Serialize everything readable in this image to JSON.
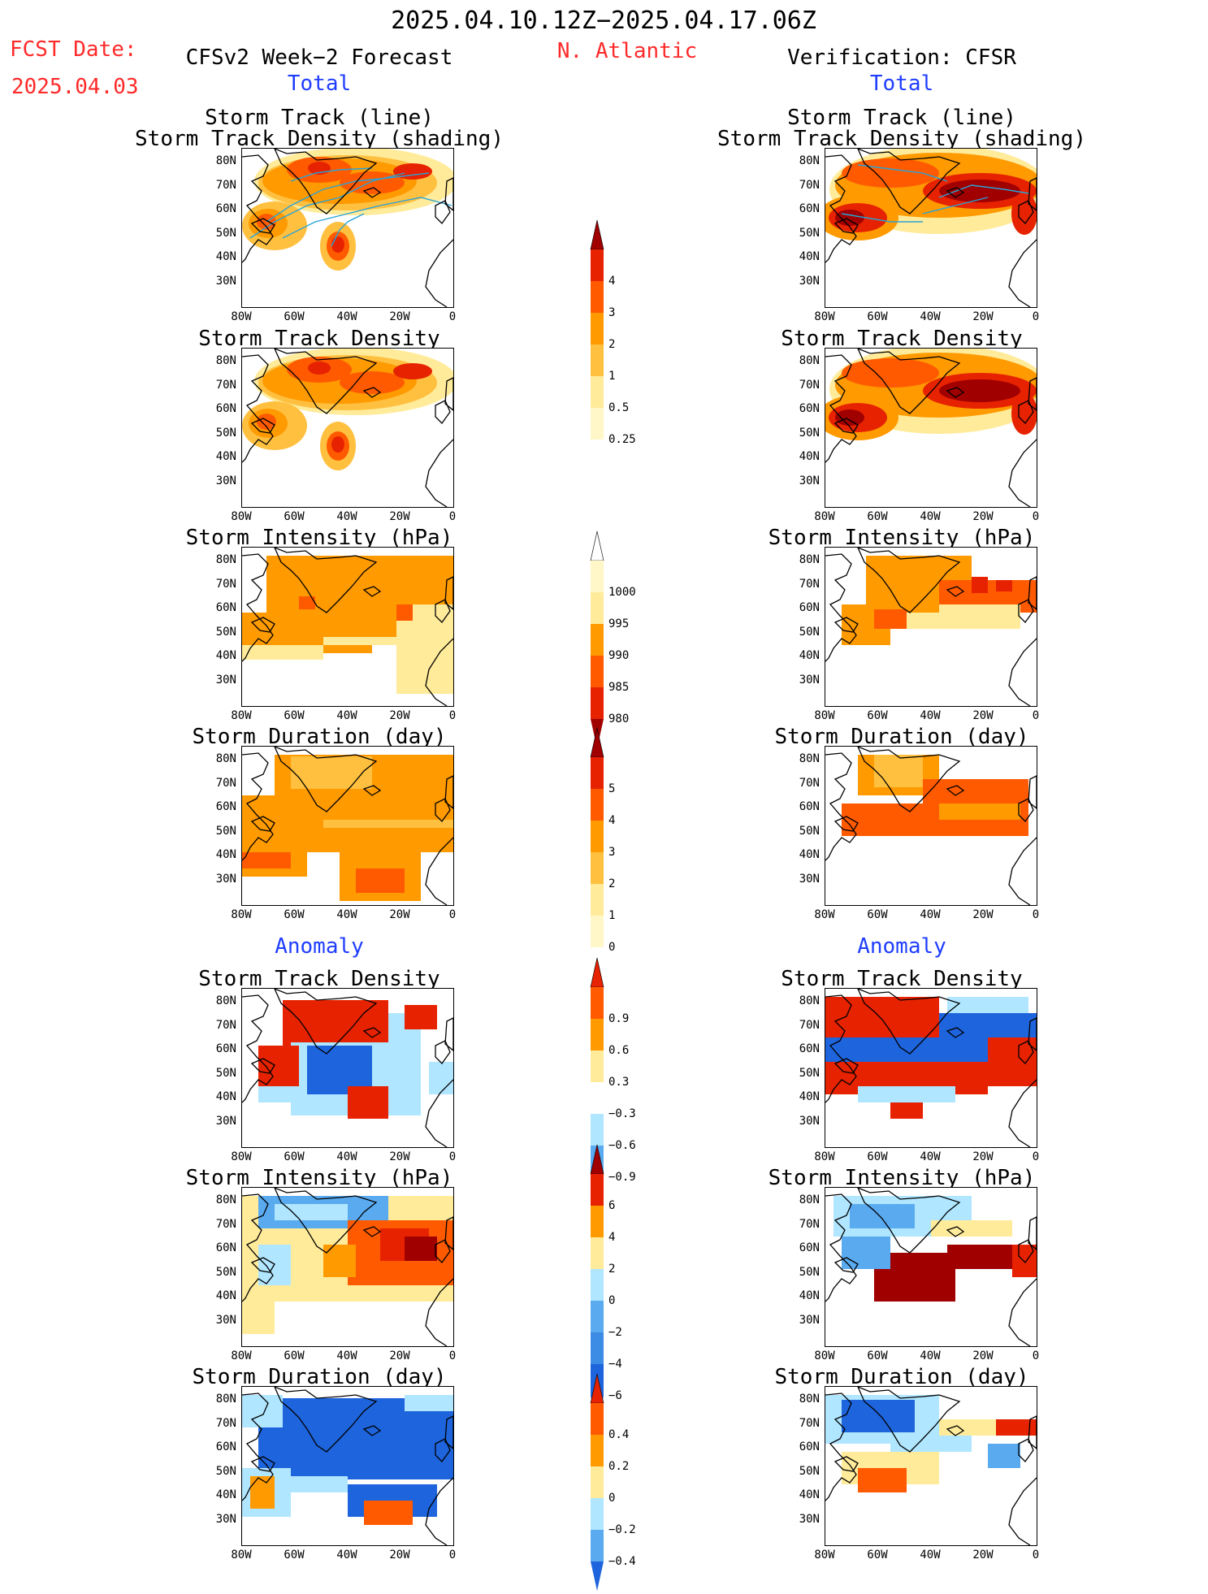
{
  "header": {
    "period": "2025.04.10.12Z−2025.04.17.06Z",
    "fcst_label": "FCST Date:",
    "fcst_date": "2025.04.03",
    "model": "CFSv2 Week−2 Forecast",
    "region": "N. Atlantic",
    "verification": "Verification: CFSR"
  },
  "sections": {
    "total": "Total",
    "anomaly": "Anomaly"
  },
  "panel_titles": {
    "track_line": "Storm Track (line)",
    "track_shading": "Storm Track Density (shading)",
    "density": "Storm Track Density",
    "intensity": "Storm Intensity (hPa)",
    "duration": "Storm Duration (day)"
  },
  "axes": {
    "lat": [
      "80N",
      "70N",
      "60N",
      "50N",
      "40N",
      "30N"
    ],
    "lon": [
      "80W",
      "60W",
      "40W",
      "20W",
      "0"
    ]
  },
  "colorbars": {
    "density_total": [
      "4",
      "3",
      "2",
      "1",
      "0.5",
      "0.25"
    ],
    "intensity_total": [
      "1000",
      "995",
      "990",
      "985",
      "980"
    ],
    "duration_total": [
      "5",
      "4",
      "3",
      "2",
      "1",
      "0"
    ],
    "density_anom": [
      "0.9",
      "0.6",
      "0.3",
      "−0.3",
      "−0.6",
      "−0.9"
    ],
    "intensity_anom": [
      "6",
      "4",
      "2",
      "0",
      "−2",
      "−4",
      "−6"
    ],
    "duration_anom": [
      "0.4",
      "0.2",
      "0",
      "−0.2",
      "−0.4"
    ]
  },
  "colors": {
    "title_red": "#ff2a2a",
    "section_blue": "#1f3dff",
    "dark_red": "#a00000",
    "red": "#e62200",
    "orange_red": "#ff5a00",
    "orange": "#ff9a00",
    "light_orange": "#ffc040",
    "pale_yellow": "#ffeb9a",
    "light_blue": "#b0e6ff",
    "mid_blue": "#5aaaf0",
    "blue": "#1e64dc",
    "track_line": "#29a3d6"
  }
}
